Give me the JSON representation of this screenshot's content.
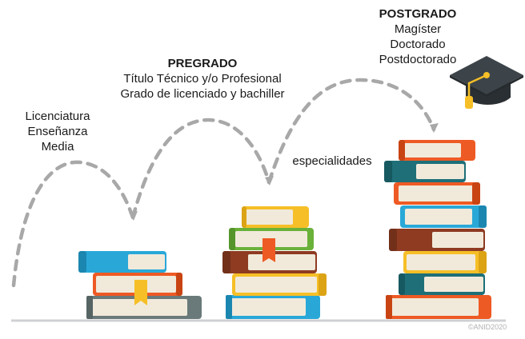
{
  "stages": {
    "media": {
      "lines": [
        "Licenciatura",
        "Enseñanza",
        "Media"
      ]
    },
    "pregrado": {
      "title": "PREGRADO",
      "lines": [
        "Título Técnico y/o Profesional",
        "Grado de licenciado y bachiller"
      ]
    },
    "especialidades": {
      "label": "especialidades"
    },
    "postgrado": {
      "title": "POSTGRADO",
      "lines": [
        "Magíster",
        "Doctorado",
        "Postdoctorado"
      ]
    }
  },
  "credit": "©ANID2020",
  "icons": [
    "graduation-cap-icon",
    "bookmark-ribbon-icon"
  ],
  "colors": {
    "dashes": "#a8a8a8",
    "ground": "#cfd0d4",
    "pages": "#f1eadb",
    "blue": "#29a8d8",
    "teal": "#1e6f78",
    "orange": "#ee5a24",
    "yellow": "#f6bf27",
    "green": "#6ab13a",
    "brown": "#8e3b22",
    "gray": "#6a7a7a",
    "navy": "#2a4c8a",
    "cap": "#33393e"
  }
}
